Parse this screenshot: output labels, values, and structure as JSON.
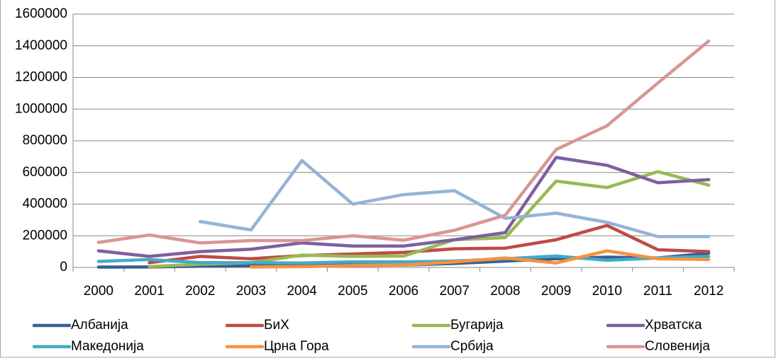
{
  "chart_data": {
    "type": "line",
    "categories": [
      "2000",
      "2001",
      "2002",
      "2003",
      "2004",
      "2005",
      "2006",
      "2007",
      "2008",
      "2009",
      "2010",
      "2011",
      "2012"
    ],
    "series": [
      {
        "name": "Албанија",
        "color": "#376092",
        "values": [
          2000,
          3000,
          8000,
          10000,
          15000,
          15000,
          15000,
          25000,
          40000,
          55000,
          65000,
          60000,
          90000
        ]
      },
      {
        "name": "БиХ",
        "color": "#be4b48",
        "values": [
          null,
          30000,
          70000,
          55000,
          75000,
          85000,
          95000,
          118000,
          122000,
          175000,
          265000,
          112000,
          100000
        ]
      },
      {
        "name": "Бугарија",
        "color": "#98b954",
        "values": [
          null,
          5000,
          20000,
          30000,
          78000,
          70000,
          72000,
          175000,
          188000,
          545000,
          505000,
          605000,
          520000
        ]
      },
      {
        "name": "Хрватска",
        "color": "#7d60a0",
        "values": [
          105000,
          70000,
          100000,
          115000,
          155000,
          135000,
          135000,
          175000,
          220000,
          695000,
          645000,
          535000,
          555000
        ]
      },
      {
        "name": "Македонија",
        "color": "#46aac5",
        "values": [
          38000,
          50000,
          30000,
          30000,
          28000,
          35000,
          35000,
          40000,
          55000,
          72000,
          45000,
          60000,
          70000
        ]
      },
      {
        "name": "Црна Гора",
        "color": "#f69240",
        "values": [
          null,
          null,
          null,
          3000,
          5000,
          12000,
          15000,
          35000,
          60000,
          28000,
          105000,
          55000,
          50000
        ]
      },
      {
        "name": "Србија",
        "color": "#95b3d7",
        "values": [
          null,
          null,
          290000,
          237000,
          675000,
          400000,
          460000,
          485000,
          310000,
          343000,
          285000,
          195000,
          195000
        ]
      },
      {
        "name": "Словенија",
        "color": "#d99694",
        "values": [
          158000,
          205000,
          155000,
          170000,
          170000,
          200000,
          172000,
          235000,
          330000,
          745000,
          895000,
          1165000,
          1430000
        ]
      }
    ],
    "ylim": [
      0,
      1600000
    ],
    "yticks": [
      0,
      200000,
      400000,
      600000,
      800000,
      1000000,
      1200000,
      1400000,
      1600000
    ],
    "grid": true,
    "legend": "bottom"
  }
}
